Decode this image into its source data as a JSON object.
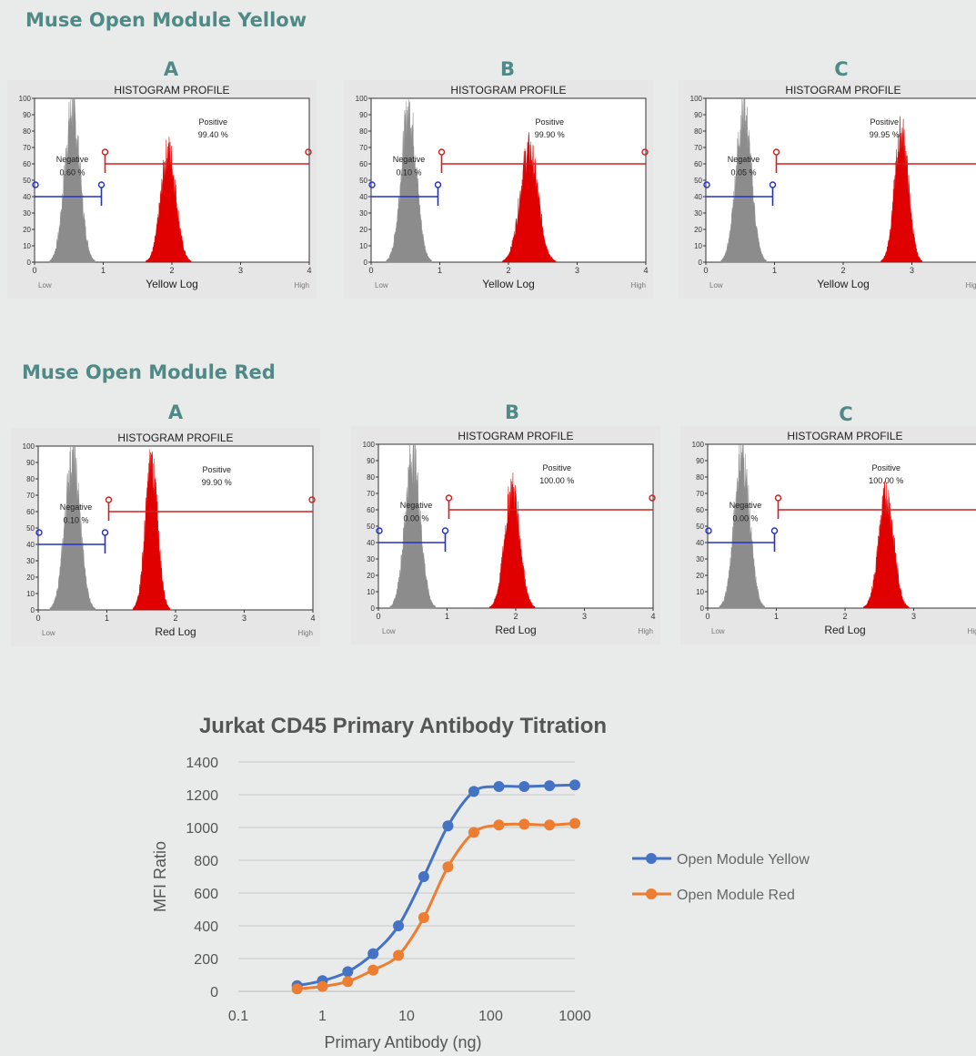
{
  "sections": [
    {
      "title": "Muse Open Module Yellow",
      "panels": [
        {
          "letter": "A",
          "title": "HISTOGRAM PROFILE",
          "xlabel": "Yellow Log",
          "negative_label": "Negative",
          "negative_pct": "0.60 %",
          "positive_label": "Positive",
          "positive_pct": "99.40 %",
          "gray_peak_log": 0.55,
          "red_peak_log": 1.95,
          "red_width_log": 0.22,
          "red_peak_pct": 67
        },
        {
          "letter": "B",
          "title": "HISTOGRAM PROFILE",
          "xlabel": "Yellow Log",
          "negative_label": "Negative",
          "negative_pct": "0.10 %",
          "positive_label": "Positive",
          "positive_pct": "99.90 %",
          "gray_peak_log": 0.55,
          "red_peak_log": 2.3,
          "red_width_log": 0.26,
          "red_peak_pct": 68
        },
        {
          "letter": "C",
          "title": "HISTOGRAM PROFILE",
          "xlabel": "Yellow Log",
          "negative_label": "Negative",
          "negative_pct": "0.05 %",
          "positive_label": "Positive",
          "positive_pct": "99.95 %",
          "gray_peak_log": 0.55,
          "red_peak_log": 2.85,
          "red_width_log": 0.2,
          "red_peak_pct": 78
        }
      ]
    },
    {
      "title": "Muse Open Module Red",
      "panels": [
        {
          "letter": "A",
          "title": "HISTOGRAM PROFILE",
          "xlabel": "Red Log",
          "negative_label": "Negative",
          "negative_pct": "0.10 %",
          "positive_label": "Positive",
          "positive_pct": "99.90 %",
          "gray_peak_log": 0.5,
          "red_peak_log": 1.65,
          "red_width_log": 0.18,
          "red_peak_pct": 88
        },
        {
          "letter": "B",
          "title": "HISTOGRAM PROFILE",
          "xlabel": "Red Log",
          "negative_label": "Negative",
          "negative_pct": "0.00 %",
          "positive_label": "Positive",
          "positive_pct": "100.00 %",
          "gray_peak_log": 0.5,
          "red_peak_log": 1.95,
          "red_width_log": 0.22,
          "red_peak_pct": 72
        },
        {
          "letter": "C",
          "title": "HISTOGRAM PROFILE",
          "xlabel": "Red Log",
          "negative_label": "Negative",
          "negative_pct": "0.00 %",
          "positive_label": "Positive",
          "positive_pct": "100.00 %",
          "gray_peak_log": 0.5,
          "red_peak_log": 2.6,
          "red_width_log": 0.22,
          "red_peak_pct": 68
        }
      ]
    }
  ],
  "histogram_axes": {
    "y_ticks": [
      "0",
      "10",
      "20",
      "30",
      "40",
      "50",
      "60",
      "70",
      "80",
      "90",
      "100"
    ],
    "x_ticks": [
      "0",
      "1",
      "2",
      "3",
      "4"
    ],
    "x_low": "Low",
    "x_high": "High",
    "negative_gate_log": [
      0,
      1
    ],
    "positive_gate_log": [
      1,
      4
    ]
  },
  "colors": {
    "title": "#4f8a86",
    "red": "#e00000",
    "gray": "#8c8c8c",
    "gate_blue": "#2230c8",
    "gate_red": "#d02020",
    "series_yellow": "#4472c4",
    "series_red": "#ed7d31"
  },
  "chart_data": {
    "type": "line",
    "title": "Jurkat CD45 Primary Antibody Titration",
    "xlabel": "Primary Antibody (ng)",
    "ylabel": "MFI Ratio",
    "x_scale": "log",
    "xlim": [
      0.1,
      1000
    ],
    "ylim": [
      0,
      1400
    ],
    "x_ticks": [
      "0.1",
      "1",
      "10",
      "100",
      "1000"
    ],
    "y_ticks": [
      "0",
      "200",
      "400",
      "600",
      "800",
      "1000",
      "1200",
      "1400"
    ],
    "grid": true,
    "legend": "right",
    "x": [
      0.5,
      1,
      2,
      4,
      8,
      16,
      31,
      63,
      125,
      250,
      500,
      1000
    ],
    "series": [
      {
        "name": "Open Module Yellow",
        "values": [
          35,
          65,
          120,
          230,
          400,
          700,
          1010,
          1220,
          1250,
          1250,
          1255,
          1260
        ]
      },
      {
        "name": "Open Module Red",
        "values": [
          15,
          30,
          60,
          130,
          220,
          450,
          760,
          970,
          1015,
          1020,
          1015,
          1025
        ]
      }
    ]
  }
}
